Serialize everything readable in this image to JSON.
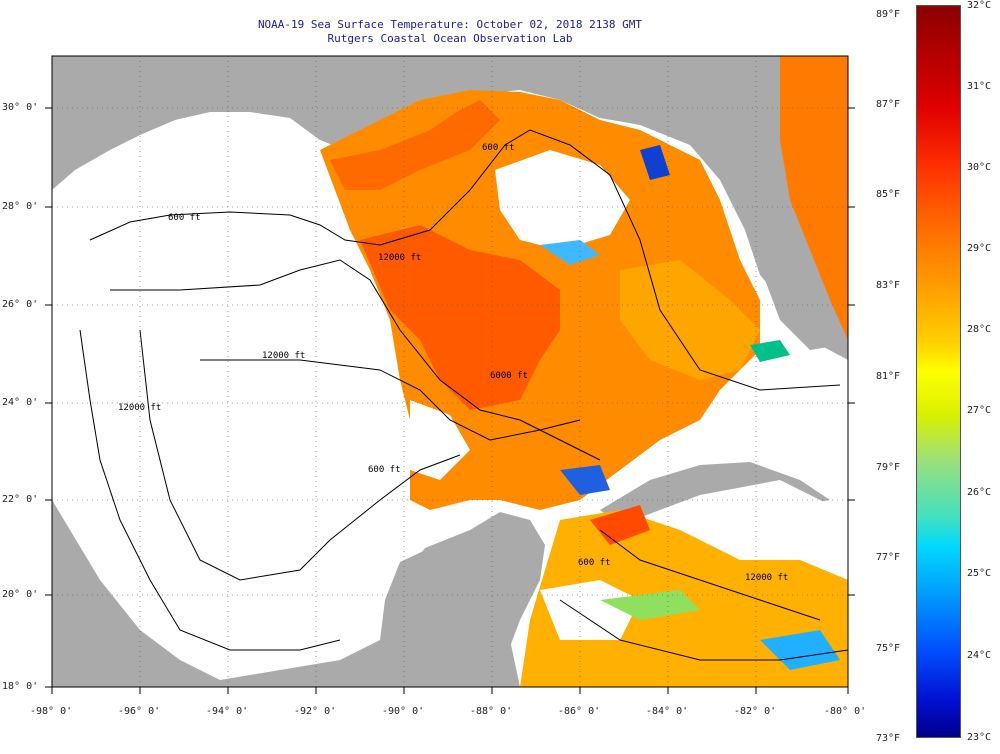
{
  "header": {
    "title": "NOAA-19 Sea Surface Temperature:  October 02, 2018 2138 GMT",
    "subtitle": "Rutgers Coastal Ocean Observation Lab"
  },
  "map": {
    "lat_labels": [
      "30° 0'",
      "28° 0'",
      "26° 0'",
      "24° 0'",
      "22° 0'",
      "20° 0'",
      "18° 0'"
    ],
    "lon_labels": [
      "-98° 0'",
      "-96° 0'",
      "-94° 0'",
      "-92° 0'",
      "-90° 0'",
      "-88° 0'",
      "-86° 0'",
      "-84° 0'",
      "-82° 0'",
      "-80° 0'"
    ],
    "contour_labels": [
      "600 ft",
      "12000 ft",
      "600 ft",
      "12000 ft",
      "6000 ft",
      "600 ft",
      "600 ft",
      "12000 ft",
      "12000 ft"
    ],
    "colors": {
      "land": "#aaaaaa",
      "ocean_missing": "#ffffff",
      "frame": "#000000"
    }
  },
  "colorbar": {
    "fahrenheit": [
      "89°F",
      "87°F",
      "85°F",
      "83°F",
      "81°F",
      "79°F",
      "77°F",
      "75°F",
      "73°F"
    ],
    "celsius": [
      "32°C",
      "31°C",
      "30°C",
      "29°C",
      "28°C",
      "27°C",
      "26°C",
      "25°C",
      "24°C",
      "23°C"
    ]
  }
}
